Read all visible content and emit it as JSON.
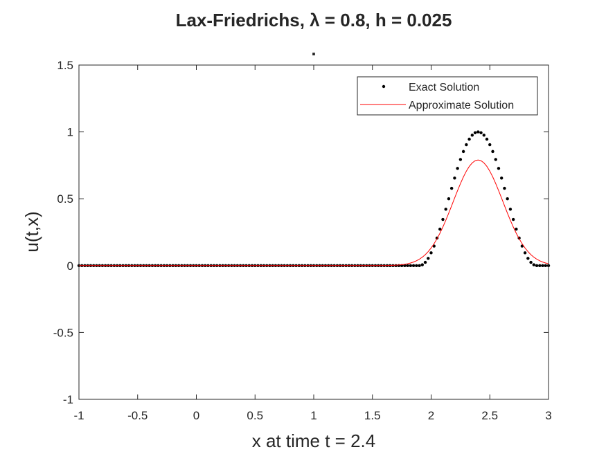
{
  "chart_data": {
    "type": "line",
    "title": [
      "Lax-Friedrichs, λ = 0.8, h = 0.025",
      "."
    ],
    "xlabel": "x at time t = 2.4",
    "ylabel": "u(t,x)",
    "xlim": [
      -1,
      3
    ],
    "xticks": [
      -1,
      -0.5,
      0,
      0.5,
      1,
      1.5,
      2,
      2.5,
      3
    ],
    "ylim": [
      -1,
      1.5
    ],
    "yticks": [
      -1,
      -0.5,
      0,
      0.5,
      1,
      1.5
    ],
    "legend": "northeast",
    "x": [
      -1,
      -0.975,
      -0.95,
      -0.925,
      -0.9,
      -0.875,
      -0.85,
      -0.825,
      -0.8,
      -0.775,
      -0.75,
      -0.725,
      -0.7,
      -0.675,
      -0.65,
      -0.625,
      -0.6,
      -0.575,
      -0.55,
      -0.525,
      -0.5,
      -0.475,
      -0.45,
      -0.425,
      -0.4,
      -0.375,
      -0.35,
      -0.325,
      -0.3,
      -0.275,
      -0.25,
      -0.225,
      -0.2,
      -0.175,
      -0.15,
      -0.125,
      -0.1,
      -0.075,
      -0.05,
      -0.025,
      0,
      0.025,
      0.05,
      0.075,
      0.1,
      0.125,
      0.15,
      0.175,
      0.2,
      0.225,
      0.25,
      0.275,
      0.3,
      0.325,
      0.35,
      0.375,
      0.4,
      0.425,
      0.45,
      0.475,
      0.5,
      0.525,
      0.55,
      0.575,
      0.6,
      0.625,
      0.65,
      0.675,
      0.7,
      0.725,
      0.75,
      0.775,
      0.8,
      0.825,
      0.85,
      0.875,
      0.9,
      0.925,
      0.95,
      0.975,
      1,
      1.025,
      1.05,
      1.075,
      1.1,
      1.125,
      1.15,
      1.175,
      1.2,
      1.225,
      1.25,
      1.275,
      1.3,
      1.325,
      1.35,
      1.375,
      1.4,
      1.425,
      1.45,
      1.475,
      1.5,
      1.525,
      1.55,
      1.575,
      1.6,
      1.625,
      1.65,
      1.675,
      1.7,
      1.725,
      1.75,
      1.775,
      1.8,
      1.825,
      1.85,
      1.875,
      1.9,
      1.925,
      1.95,
      1.975,
      2,
      2.025,
      2.05,
      2.075,
      2.1,
      2.125,
      2.15,
      2.175,
      2.2,
      2.225,
      2.25,
      2.275,
      2.3,
      2.325,
      2.35,
      2.375,
      2.4,
      2.425,
      2.45,
      2.475,
      2.5,
      2.525,
      2.55,
      2.575,
      2.6,
      2.625,
      2.65,
      2.675,
      2.7,
      2.725,
      2.75,
      2.775,
      2.8,
      2.825,
      2.85,
      2.875,
      2.9,
      2.925,
      2.95,
      2.975,
      3
    ],
    "series": [
      {
        "name": "Exact Solution",
        "color": "#000000",
        "marker": "dot",
        "values": [
          0,
          0,
          0,
          0,
          0,
          0,
          0,
          0,
          0,
          0,
          0,
          0,
          0,
          0,
          0,
          0,
          0,
          0,
          0,
          0,
          0,
          0,
          0,
          0,
          0,
          0,
          0,
          0,
          0,
          0,
          0,
          0,
          0,
          0,
          0,
          0,
          0,
          0,
          0,
          0,
          0,
          0,
          0,
          0,
          0,
          0,
          0,
          0,
          0,
          0,
          0,
          0,
          0,
          0,
          0,
          0,
          0,
          0,
          0,
          0,
          0,
          0,
          0,
          0,
          0,
          0,
          0,
          0,
          0,
          0,
          0,
          0,
          0,
          0,
          0,
          0,
          0,
          0,
          0,
          0,
          0,
          0,
          0,
          0,
          0,
          0,
          0,
          0,
          0,
          0,
          0,
          0,
          0,
          0,
          0,
          0,
          0,
          0,
          0,
          0,
          0,
          0,
          0,
          0,
          0,
          0,
          0,
          0,
          0,
          0,
          0,
          0,
          0,
          0,
          0,
          0,
          0,
          0.0062,
          0.0245,
          0.0545,
          0.0955,
          0.1464,
          0.2061,
          0.273,
          0.3455,
          0.4218,
          0.5,
          0.5782,
          0.6545,
          0.727,
          0.7939,
          0.8536,
          0.9045,
          0.9455,
          0.9755,
          0.9938,
          1,
          0.9938,
          0.9755,
          0.9455,
          0.9045,
          0.8536,
          0.7939,
          0.727,
          0.6545,
          0.5782,
          0.5,
          0.4218,
          0.3455,
          0.273,
          0.2061,
          0.1464,
          0.0955,
          0.0545,
          0.0245,
          0.0062,
          0,
          0,
          0,
          0,
          0
        ]
      },
      {
        "name": "Approximate Solution",
        "color": "#ff0000",
        "marker": "line",
        "values": [
          0,
          0,
          0,
          0,
          0,
          0,
          0,
          0,
          0,
          0,
          0,
          0,
          0,
          0,
          0,
          0,
          0,
          0,
          0,
          0,
          0,
          0,
          0,
          0,
          0,
          0,
          0,
          0,
          0,
          0,
          0,
          0,
          0,
          0,
          0,
          0,
          0,
          0,
          0,
          0,
          0,
          0,
          0,
          0,
          0,
          0,
          0,
          0,
          0,
          0,
          0,
          0,
          0,
          0,
          0,
          0,
          0,
          0,
          0,
          0,
          0,
          0,
          0,
          0,
          0,
          0,
          0,
          0,
          0,
          0,
          0,
          0,
          0,
          0,
          0,
          0,
          0,
          0,
          0,
          0,
          0,
          0,
          0,
          0,
          0,
          0,
          0,
          0,
          0,
          0,
          0,
          0,
          0,
          0,
          0,
          0,
          0,
          0,
          0,
          0,
          0,
          0,
          0,
          0,
          0,
          0,
          0.0015,
          0.0022,
          0.0033,
          0.0048,
          0.007,
          0.01,
          0.0141,
          0.0196,
          0.0268,
          0.0362,
          0.0482,
          0.0633,
          0.082,
          0.1047,
          0.1319,
          0.1639,
          0.2007,
          0.2424,
          0.2887,
          0.339,
          0.3927,
          0.4485,
          0.505,
          0.5609,
          0.6142,
          0.6633,
          0.7064,
          0.7418,
          0.7682,
          0.7845,
          0.79,
          0.7845,
          0.7682,
          0.7418,
          0.7064,
          0.6633,
          0.6142,
          0.5609,
          0.505,
          0.4485,
          0.3927,
          0.339,
          0.2887,
          0.2424,
          0.2007,
          0.1639,
          0.1319,
          0.1047,
          0.082,
          0.0633,
          0.0482,
          0.0362,
          0.0268,
          0.0196,
          0.0141
        ]
      }
    ]
  }
}
